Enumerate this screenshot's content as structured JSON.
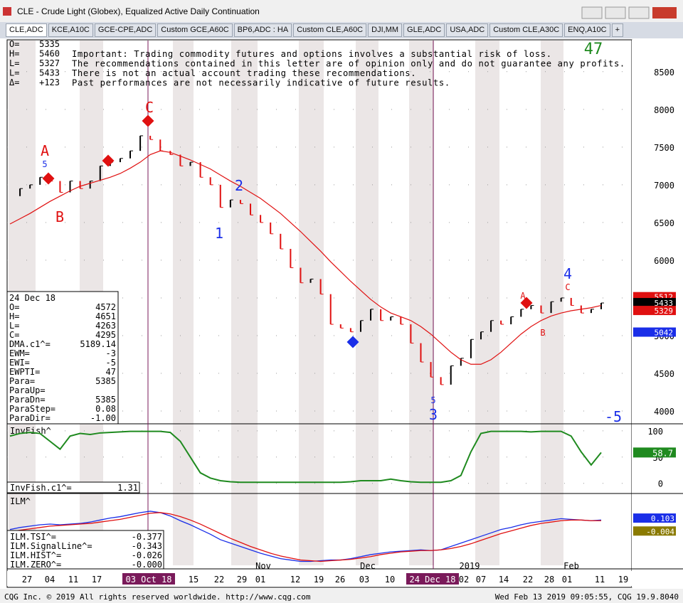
{
  "window": {
    "title": "CLE - Crude Light (Globex), Equalized Active Daily Continuation"
  },
  "tabs": [
    "CLE,ADC",
    "KCE,A10C",
    "GCE-CPE,ADC",
    "Custom GCE,A60C",
    "BP6,ADC : HA",
    "Custom CLE,A60C",
    "DJI,MM",
    "GLE,ADC",
    "USA,ADC",
    "Custom CLE,A30C",
    "ENQ,A10C",
    "+"
  ],
  "quote": [
    [
      "O=",
      "5335"
    ],
    [
      "H=",
      "5460"
    ],
    [
      "L=",
      "5327"
    ],
    [
      "L=",
      "5433"
    ],
    [
      "Δ=",
      "+123"
    ]
  ],
  "disclaimer": [
    "Important: Trading commodity futures and options involves a substantial risk of loss.",
    "The recommendations contained in this letter are of opinion only and do not guarantee any profits.",
    "There is not an actual account trading these recommendations.",
    "Past performances are not necessarily indicative of future results."
  ],
  "count": "47",
  "price": {
    "ylim": [
      3840,
      8913
    ],
    "yticks": [
      4000,
      4500,
      5000,
      5500,
      6000,
      6500,
      7000,
      7500,
      8000,
      8500
    ],
    "closes": [
      6850,
      6950,
      7000,
      7100,
      7050,
      6900,
      7050,
      6950,
      7050,
      7250,
      7300,
      7350,
      7450,
      7650,
      7600,
      7450,
      7400,
      7250,
      7300,
      7100,
      7000,
      6700,
      6800,
      6750,
      6600,
      6500,
      6350,
      6150,
      5900,
      5700,
      5750,
      5550,
      5150,
      5100,
      5050,
      5200,
      5350,
      5200,
      5250,
      5150,
      4900,
      4650,
      4450,
      4350,
      4600,
      4700,
      4950,
      5050,
      5200,
      5150,
      5250,
      5350,
      5400,
      5300,
      5450,
      5500,
      5400,
      5300,
      5350,
      5433
    ],
    "dma": [
      6480,
      6550,
      6620,
      6700,
      6780,
      6850,
      6920,
      6980,
      7020,
      7060,
      7100,
      7150,
      7220,
      7300,
      7400,
      7450,
      7430,
      7380,
      7330,
      7270,
      7210,
      7130,
      7050,
      6980,
      6900,
      6820,
      6720,
      6620,
      6500,
      6380,
      6250,
      6120,
      5980,
      5850,
      5720,
      5600,
      5480,
      5380,
      5300,
      5250,
      5200,
      5120,
      5020,
      4900,
      4780,
      4680,
      4620,
      4620,
      4680,
      4780,
      4900,
      5020,
      5120,
      5200,
      5260,
      5300,
      5330,
      5350,
      5370,
      5400
    ],
    "up_color": "#000000",
    "down_color": "#e01010",
    "dma_color": "#e01010",
    "tags": [
      {
        "value": 5512,
        "color": "#e01010"
      },
      {
        "value": 5433,
        "color": "#000000"
      },
      {
        "value": 5329,
        "color": "#e01010"
      },
      {
        "value": 5042,
        "color": "#1a2ee8"
      }
    ]
  },
  "cursor": {
    "date": "24 Dec 18",
    "rows": [
      [
        "O=",
        "4572"
      ],
      [
        "H=",
        "4651"
      ],
      [
        "L=",
        "4263"
      ],
      [
        "C=",
        "4295"
      ],
      [
        "DMA.c1^=",
        "5189.14"
      ],
      [
        "EWM=",
        "-3"
      ],
      [
        "EWI=",
        "-5"
      ],
      [
        "EWPTI=",
        "47"
      ],
      [
        "Para=",
        "5385"
      ],
      [
        "ParaUp="
      ],
      [
        "ParaDn=",
        "5385"
      ],
      [
        "ParaStep=",
        "0.08"
      ],
      [
        "ParaDir=",
        "-1.00"
      ]
    ]
  },
  "annotations": [
    {
      "text": "A",
      "color": "#e01010"
    },
    {
      "text": "B",
      "color": "#e01010"
    },
    {
      "text": "C",
      "color": "#e01010"
    },
    {
      "text": "1",
      "color": "#1a2ee8"
    },
    {
      "text": "2",
      "color": "#1a2ee8"
    },
    {
      "text": "3",
      "color": "#1a2ee8"
    },
    {
      "text": "4",
      "color": "#1a2ee8"
    },
    {
      "text": "-5",
      "color": "#1a2ee8"
    },
    {
      "text": "5",
      "color": "#1a2ee8"
    },
    {
      "text": "5",
      "color": "#1a2ee8"
    },
    {
      "text": "A",
      "color": "#e01010"
    },
    {
      "text": "C",
      "color": "#e01010"
    },
    {
      "text": "B",
      "color": "#e01010"
    }
  ],
  "invfish": {
    "title": "InvFish^",
    "ylim": [
      -18,
      112
    ],
    "yticks": [
      0,
      50,
      100
    ],
    "color": "#1f8a1f",
    "values": [
      90,
      95,
      97,
      95,
      80,
      65,
      90,
      95,
      93,
      96,
      97,
      98,
      99,
      99,
      99,
      99,
      97,
      80,
      50,
      20,
      10,
      5,
      3,
      2,
      2,
      2,
      2,
      2,
      2,
      2,
      2,
      2,
      2,
      2,
      3,
      5,
      5,
      5,
      8,
      5,
      3,
      2,
      2,
      2,
      5,
      15,
      60,
      95,
      99,
      99,
      99,
      99,
      98,
      99,
      99,
      99,
      90,
      60,
      35,
      58.7
    ],
    "readout": [
      "InvFish.c1^=",
      "1.31"
    ],
    "tag": 58.7
  },
  "ilm": {
    "title": "ILM^",
    "ylim": [
      -0.62,
      0.45
    ],
    "series": [
      {
        "name": "TSI",
        "color": "#1a2ee8",
        "values": [
          -0.05,
          -0.02,
          0,
          0.02,
          0.03,
          0.02,
          0.03,
          0.04,
          0.06,
          0.09,
          0.12,
          0.14,
          0.17,
          0.2,
          0.22,
          0.2,
          0.15,
          0.08,
          0.02,
          -0.05,
          -0.12,
          -0.2,
          -0.25,
          -0.3,
          -0.35,
          -0.4,
          -0.44,
          -0.48,
          -0.5,
          -0.52,
          -0.52,
          -0.51,
          -0.5,
          -0.5,
          -0.48,
          -0.45,
          -0.42,
          -0.4,
          -0.38,
          -0.37,
          -0.36,
          -0.35,
          -0.36,
          -0.35,
          -0.3,
          -0.25,
          -0.2,
          -0.15,
          -0.1,
          -0.05,
          -0.02,
          0.02,
          0.05,
          0.07,
          0.09,
          0.11,
          0.1,
          0.09,
          0.08,
          0.09
        ]
      },
      {
        "name": "SignalLine",
        "color": "#e01010",
        "values": [
          -0.08,
          -0.06,
          -0.04,
          -0.02,
          0,
          0.01,
          0.02,
          0.03,
          0.04,
          0.06,
          0.08,
          0.1,
          0.13,
          0.16,
          0.19,
          0.2,
          0.18,
          0.14,
          0.09,
          0.03,
          -0.04,
          -0.11,
          -0.18,
          -0.24,
          -0.3,
          -0.35,
          -0.4,
          -0.44,
          -0.47,
          -0.5,
          -0.51,
          -0.52,
          -0.51,
          -0.5,
          -0.49,
          -0.47,
          -0.45,
          -0.42,
          -0.4,
          -0.38,
          -0.37,
          -0.36,
          -0.36,
          -0.35,
          -0.33,
          -0.3,
          -0.26,
          -0.21,
          -0.16,
          -0.11,
          -0.07,
          -0.03,
          0.01,
          0.04,
          0.06,
          0.08,
          0.09,
          0.09,
          0.08,
          0.08
        ]
      }
    ],
    "readout": [
      [
        "ILM.TSI^=",
        "-0.377"
      ],
      [
        "ILM.SignalLine^=",
        "-0.343"
      ],
      [
        "ILM.HIST^=",
        "-0.026"
      ],
      [
        "ILM.ZERO^=",
        "-0.000"
      ]
    ],
    "tags": [
      {
        "value": 0.103,
        "color": "#1a2ee8"
      },
      {
        "value": -0.004,
        "color": "#8a7a00"
      }
    ]
  },
  "dates": [
    "27",
    "04",
    "11",
    "17",
    "03 Oct 18",
    "15",
    "22",
    "29",
    "01",
    "12",
    "19",
    "26",
    "03",
    "10",
    "24 Dec 18",
    "02",
    "07",
    "14",
    "22",
    "28",
    "01",
    "11",
    "19"
  ],
  "months": [
    "Nov",
    "Dec",
    "2019",
    "Feb"
  ],
  "status": {
    "left": "CQG Inc. © 2019 All rights reserved worldwide. http://www.cqg.com",
    "right": "Wed Feb 13 2019 09:05:55, CQG 19.9.8040"
  }
}
